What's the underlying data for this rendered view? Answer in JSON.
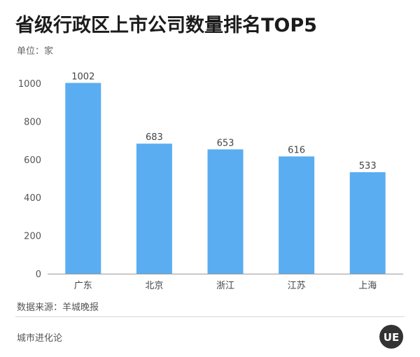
{
  "header": {
    "title": "省级行政区上市公司数量排名TOP5",
    "unit": "单位：家"
  },
  "footer": {
    "source": "数据来源：羊城晚报",
    "brand": "城市进化论",
    "logo_text": "UE"
  },
  "colors": {
    "bar": "#5aadf0",
    "axis": "#999999",
    "logo_bg": "#333333"
  },
  "chart_data": {
    "type": "bar",
    "title": "省级行政区上市公司数量排名TOP5",
    "ylabel": "单位：家",
    "xlabel": "",
    "categories": [
      "广东",
      "北京",
      "浙江",
      "江苏",
      "上海"
    ],
    "values": [
      1002,
      683,
      653,
      616,
      533
    ],
    "yticks": [
      0,
      200,
      400,
      600,
      800,
      1000
    ],
    "ylim": [
      0,
      1000
    ],
    "grid": false,
    "data_labels": true
  }
}
